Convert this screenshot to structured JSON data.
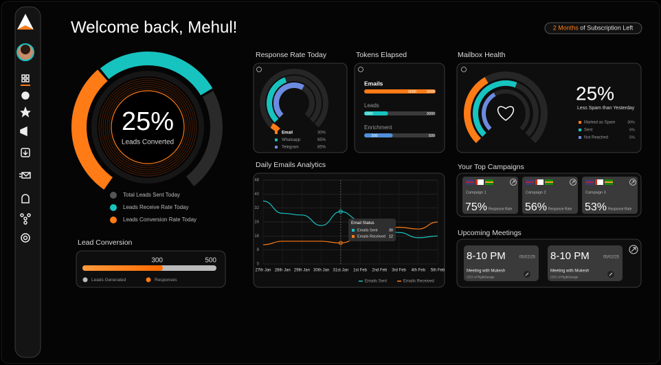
{
  "header": {
    "title": "Welcome back, Mehul!",
    "subscription_highlight": "2 Months",
    "subscription_text": "of Subscription Left"
  },
  "leads": {
    "value_label": "25%",
    "caption": "Leads Converted",
    "legend": [
      "Total Leads Sent Today",
      "Leads Receive Rate Today",
      "Leads Conversion Rate Today"
    ]
  },
  "lead_conversion": {
    "title": "Lead Conversion",
    "responses": 300,
    "generated": 500,
    "legend": [
      "Leads Generated",
      "Responses"
    ]
  },
  "response_rate": {
    "title": "Response Rate Today",
    "items": [
      {
        "name": "Email",
        "value": "30%"
      },
      {
        "name": "Whatsapp",
        "value": "65%"
      },
      {
        "name": "Telegram",
        "value": "85%"
      }
    ]
  },
  "tokens": {
    "title": "Tokens Elapsed",
    "items": [
      {
        "name": "Emails",
        "used": 3000,
        "total": 3000
      },
      {
        "name": "Leads",
        "used": 1000,
        "total": 3000
      },
      {
        "name": "Enrichment",
        "used": 200,
        "total": 500
      }
    ]
  },
  "mailbox": {
    "title": "Mailbox Health",
    "value": "25%",
    "caption": "Less Spam than Yesterday",
    "items": [
      {
        "name": "Marked as Spam",
        "value": "30%"
      },
      {
        "name": "Sent",
        "value": "6%"
      },
      {
        "name": "Not Reached",
        "value": "5%"
      }
    ]
  },
  "daily_emails": {
    "title": "Daily Emails Analytics",
    "type": "line",
    "categories": [
      "27th Jan",
      "28th Jan",
      "29th Jan",
      "30th Jan",
      "31st Jan",
      "1st Feb",
      "2nd Feb",
      "3rd Feb",
      "4th Feb",
      "5th Feb"
    ],
    "ylim": [
      0,
      48
    ],
    "yticks": [
      0,
      8,
      16,
      24,
      32,
      40,
      48
    ],
    "grid": true,
    "tooltip_title": "Email Status",
    "tooltip_index": 4,
    "series": [
      {
        "name": "Emails Sent",
        "color": "#17c3bf",
        "values": [
          36,
          29,
          28,
          22,
          30,
          25,
          22,
          18,
          15,
          16
        ]
      },
      {
        "name": "Emails Received",
        "color": "#ff7b16",
        "values": [
          11,
          13,
          13,
          13,
          12,
          15,
          19,
          21,
          20,
          24
        ]
      }
    ]
  },
  "campaigns": {
    "title": "Your Top Campaigns",
    "items": [
      {
        "name": "Campaign 1",
        "value": "75%",
        "label": "Response Rate"
      },
      {
        "name": "Campaign 2",
        "value": "56%",
        "label": "Response Rate"
      },
      {
        "name": "Campaign 3",
        "value": "53%",
        "label": "Response Rate"
      }
    ]
  },
  "meetings": {
    "title": "Upcoming Meetings",
    "items": [
      {
        "time": "8-10 PM",
        "date": "05/02/25",
        "title": "Meeting with Mukesh",
        "subtitle": "CEO of RightDesign"
      },
      {
        "time": "8-10 PM",
        "date": "05/02/25",
        "title": "Meeting with Mukesh",
        "subtitle": "CEO of RightDesign"
      }
    ]
  }
}
